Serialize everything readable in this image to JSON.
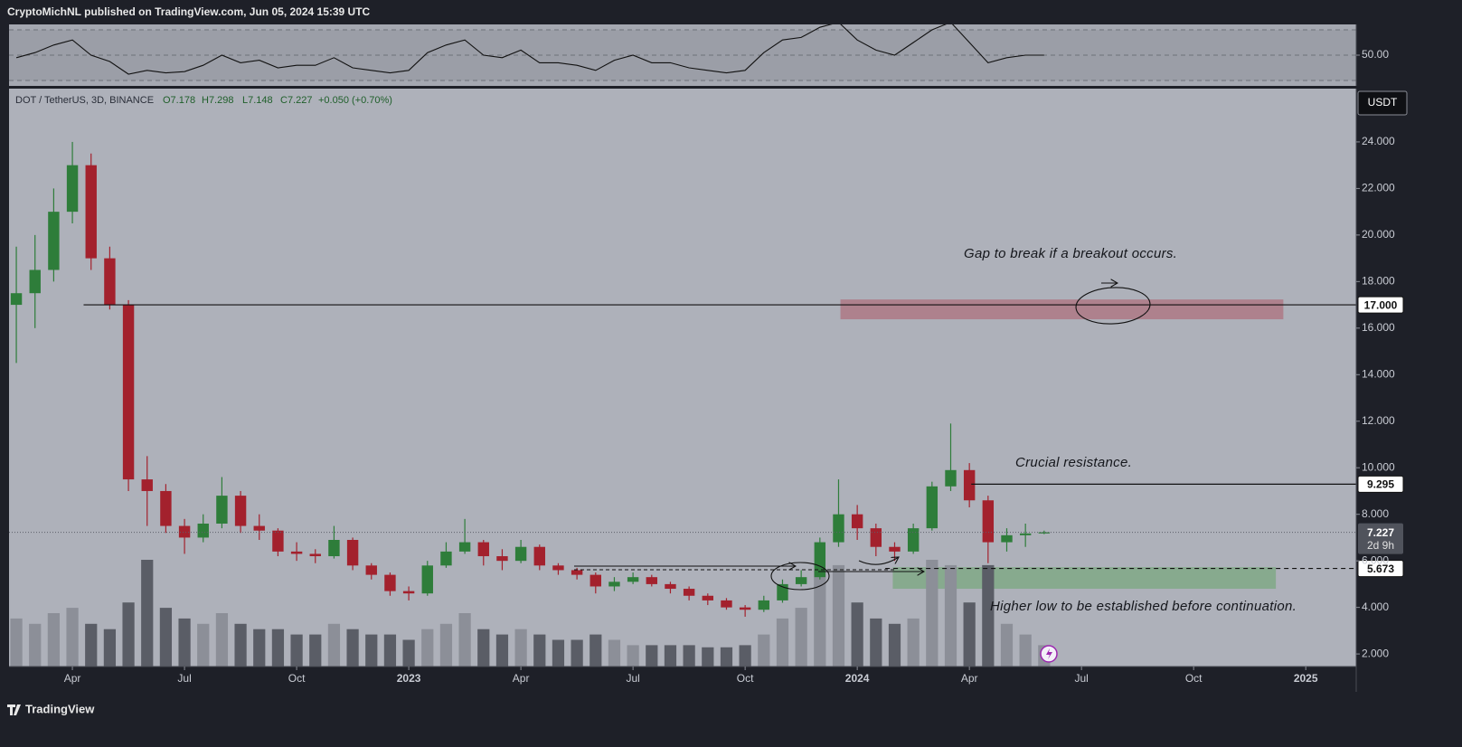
{
  "header": {
    "publisher": "CryptoMichNL published on TradingView.com, Jun 05, 2024 15:39 UTC"
  },
  "footer": {
    "brand": "TradingView"
  },
  "chart_data": {
    "type": "candlestick",
    "legend": {
      "symbol": "DOT / TetherUS, 3D, BINANCE",
      "open": "O7.178",
      "high": "H7.298",
      "low": "L7.148",
      "close": "C7.227",
      "change": "+0.050 (+0.70%)"
    },
    "currency": "USDT",
    "countdown": "2d 9h",
    "annotations": [
      "Gap to break if a breakout occurs.",
      "Crucial resistance.",
      "Higher low to be established before continuation."
    ],
    "up_color": "#2e7d3a",
    "down_color": "#a3212d",
    "open": [
      17,
      17.5,
      18.5,
      21,
      23,
      19,
      17,
      9.5,
      9,
      7.5,
      7,
      7.6,
      8.8,
      7.5,
      7.3,
      6.4,
      6.3,
      6.2,
      6.9,
      5.8,
      5.4,
      4.7,
      4.6,
      5.8,
      6.4,
      6.8,
      6.2,
      6,
      6.6,
      5.8,
      5.6,
      5.4,
      4.9,
      5.1,
      5.3,
      5,
      4.8,
      4.5,
      4.3,
      4,
      3.9,
      4.3,
      5,
      5.3,
      6.8,
      8,
      7.4,
      6.6,
      6.4,
      7.4,
      9.2,
      9.9,
      8.6,
      6.8,
      7.1,
      7.178
    ],
    "high": [
      19.5,
      20,
      22,
      24,
      23.5,
      19.5,
      17.2,
      10.5,
      9.3,
      7.8,
      8,
      9.6,
      9,
      8,
      7.4,
      6.8,
      6.5,
      7.5,
      7,
      5.9,
      5.5,
      4.9,
      6,
      6.8,
      7.8,
      6.9,
      6.5,
      6.9,
      6.7,
      5.9,
      5.7,
      5.5,
      5.3,
      5.5,
      5.4,
      5.1,
      4.9,
      4.6,
      4.4,
      4.1,
      4.5,
      5.2,
      5.6,
      7,
      9.5,
      8.4,
      7.6,
      6.8,
      7.6,
      9.4,
      11.9,
      10.2,
      8.8,
      7.4,
      7.6,
      7.298
    ],
    "low": [
      14.5,
      16,
      18,
      20.5,
      18.5,
      16.8,
      9,
      7.5,
      7.2,
      6.3,
      6.8,
      7.4,
      7.2,
      6.9,
      6.2,
      6,
      5.9,
      6.1,
      5.6,
      5.2,
      4.5,
      4.3,
      4.5,
      5.7,
      6.3,
      5.8,
      5.6,
      5.9,
      5.6,
      5.4,
      5.2,
      4.6,
      4.7,
      5,
      4.9,
      4.6,
      4.3,
      4.1,
      3.9,
      3.6,
      3.8,
      4.2,
      4.9,
      5.2,
      6.6,
      6.9,
      6.2,
      6,
      6.3,
      7.3,
      9,
      8.3,
      5.9,
      6.4,
      6.6,
      7.148
    ],
    "close": [
      17.5,
      18.5,
      21,
      23,
      19,
      17,
      9.5,
      9,
      7.5,
      7,
      7.6,
      8.8,
      7.5,
      7.3,
      6.4,
      6.3,
      6.2,
      6.9,
      5.8,
      5.4,
      4.7,
      4.6,
      5.8,
      6.4,
      6.8,
      6.2,
      6,
      6.6,
      5.8,
      5.6,
      5.4,
      4.9,
      5.1,
      5.3,
      5,
      4.8,
      4.5,
      4.3,
      4,
      3.9,
      4.3,
      5,
      5.3,
      6.8,
      8,
      7.4,
      6.6,
      6.4,
      7.4,
      9.2,
      9.9,
      8.6,
      6.8,
      7.1,
      7.178,
      7.227
    ],
    "volume": [
      45,
      40,
      50,
      55,
      40,
      35,
      60,
      100,
      55,
      45,
      40,
      50,
      40,
      35,
      35,
      30,
      30,
      40,
      35,
      30,
      30,
      25,
      35,
      40,
      50,
      35,
      30,
      35,
      30,
      25,
      25,
      30,
      25,
      20,
      20,
      20,
      20,
      18,
      18,
      20,
      30,
      45,
      55,
      90,
      95,
      60,
      45,
      40,
      45,
      100,
      95,
      60,
      95,
      40,
      30,
      20
    ],
    "volume_ylim": [
      0,
      100
    ],
    "xlim": [
      -0.39,
      71.7
    ],
    "xticks": [
      {
        "value": 3,
        "label": "Apr"
      },
      {
        "value": 9,
        "label": "Jul"
      },
      {
        "value": 15,
        "label": "Oct"
      },
      {
        "value": 21,
        "label": "2023"
      },
      {
        "value": 27,
        "label": "Apr"
      },
      {
        "value": 33,
        "label": "Jul"
      },
      {
        "value": 39,
        "label": "Oct"
      },
      {
        "value": 45,
        "label": "2024"
      },
      {
        "value": 51,
        "label": "Apr"
      },
      {
        "value": 57,
        "label": "Jul"
      },
      {
        "value": 63,
        "label": "Oct"
      },
      {
        "value": 69,
        "label": "2025"
      }
    ],
    "ylim": [
      1.46,
      26.29
    ],
    "yticks": [
      {
        "value": 2,
        "label": "2.000"
      },
      {
        "value": 4,
        "label": "4.000"
      },
      {
        "value": 6,
        "label": "6.000"
      },
      {
        "value": 8,
        "label": "8.000"
      },
      {
        "value": 10,
        "label": "10.000"
      },
      {
        "value": 12,
        "label": "12.000"
      },
      {
        "value": 14,
        "label": "14.000"
      },
      {
        "value": 16,
        "label": "16.000"
      },
      {
        "value": 18,
        "label": "18.000"
      },
      {
        "value": 20,
        "label": "20.000"
      },
      {
        "value": 22,
        "label": "22.000"
      },
      {
        "value": 24,
        "label": "24.000"
      }
    ],
    "rsi": {
      "values": [
        48,
        52,
        58,
        62,
        50,
        45,
        35,
        38,
        36,
        37,
        42,
        50,
        44,
        46,
        40,
        42,
        42,
        48,
        40,
        38,
        36,
        38,
        52,
        58,
        62,
        50,
        48,
        54,
        44,
        44,
        42,
        38,
        46,
        50,
        44,
        44,
        40,
        38,
        36,
        38,
        52,
        62,
        64,
        72,
        76,
        62,
        54,
        50,
        60,
        70,
        76,
        60,
        44,
        48,
        50,
        50
      ],
      "ylim": [
        25.7,
        74.3
      ],
      "yticks": [
        {
          "value": 50,
          "label": "50.00"
        }
      ],
      "levels": [
        30,
        50,
        70
      ]
    },
    "levels": [
      {
        "value": 17,
        "label": "17.000",
        "from": 3.6,
        "dashed": false
      },
      {
        "value": 9.295,
        "label": "9.295",
        "from": 51.1,
        "dashed": false
      },
      {
        "value": 5.673,
        "label": "5.673",
        "from": 46.5,
        "dashed": true
      }
    ],
    "zones": [
      {
        "low": 16.38,
        "high": 17.23,
        "from": 44.1,
        "to": 67.8,
        "color": "rgba(176,40,58,0.35)"
      },
      {
        "low": 4.8,
        "high": 5.73,
        "from": 46.9,
        "to": 67.4,
        "color": "rgba(70,160,70,0.38)"
      }
    ]
  }
}
